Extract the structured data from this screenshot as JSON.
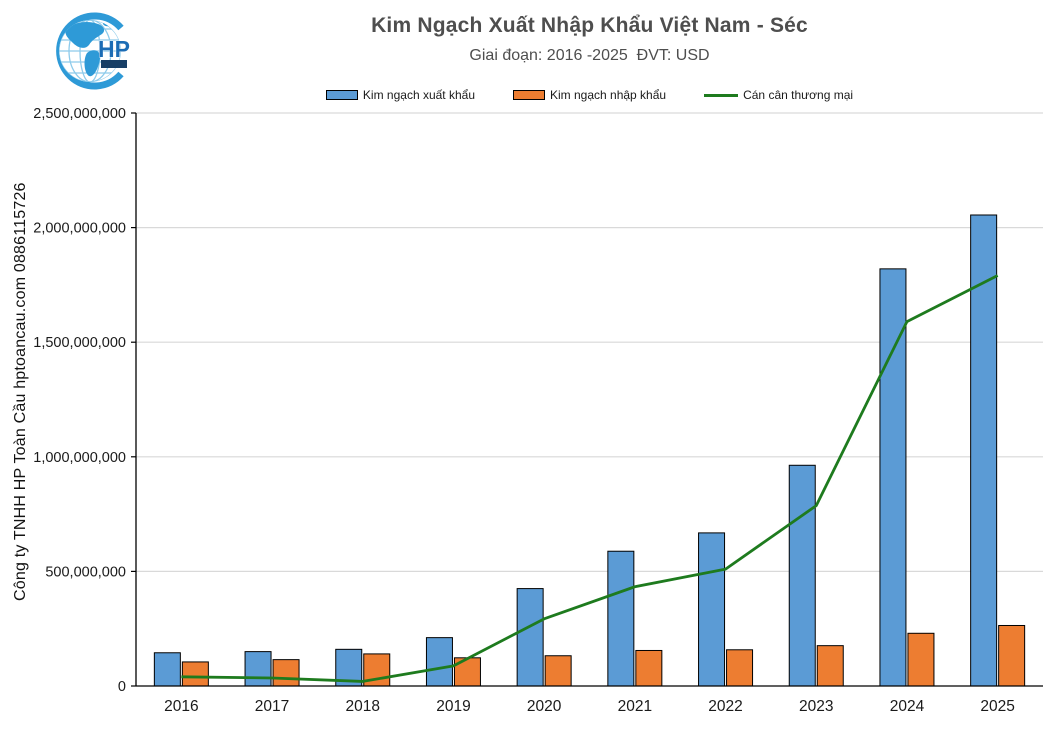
{
  "header": {
    "title": "Kim Ngạch Xuất Nhập Khẩu Việt Nam - Séc",
    "subtitle": "Giai đoạn: 2016 -2025  ĐVT: USD"
  },
  "logo": {
    "text": "HP",
    "globe_color": "#2e9ad7",
    "letter_color": "#1b6cb5",
    "bar_color": "#173f66"
  },
  "watermark": "Công ty TNHH HP Toàn Cầu hptoancau.com 0886115726",
  "chart_data": {
    "type": "bar",
    "categories": [
      "2016",
      "2017",
      "2018",
      "2019",
      "2020",
      "2021",
      "2022",
      "2023",
      "2024",
      "2025"
    ],
    "series": [
      {
        "name": "Kim ngạch xuất khẩu",
        "type": "bar",
        "color": "#5B9BD5",
        "values": [
          145000000,
          150000000,
          160000000,
          211000000,
          425000000,
          588000000,
          668000000,
          963000000,
          1820000000,
          2055000000
        ]
      },
      {
        "name": "Kim ngạch nhập khẩu",
        "type": "bar",
        "color": "#ED7D31",
        "values": [
          105000000,
          115000000,
          140000000,
          123000000,
          132000000,
          155000000,
          158000000,
          176000000,
          230000000,
          264000000
        ]
      },
      {
        "name": "Cán cân thương mại",
        "type": "line",
        "color": "#1E7B1E",
        "values": [
          40000000,
          35000000,
          20000000,
          88000000,
          293000000,
          433000000,
          510000000,
          787000000,
          1590000000,
          1791000000
        ]
      }
    ],
    "title": "Kim Ngạch Xuất Nhập Khẩu Việt Nam - Séc",
    "xlabel": "",
    "ylabel": "",
    "ylim": [
      0,
      2500000000
    ],
    "ytick_step": 500000000,
    "ytick_labels": [
      "0",
      "500,000,000",
      "1,000,000,000",
      "1,500,000,000",
      "2,000,000,000",
      "2,500,000,000"
    ],
    "grid": true,
    "legend_position": "top",
    "axis_color": "#000000",
    "gridline_color": "#d9d9d9",
    "tick_label_color": "#1a1a1a"
  }
}
